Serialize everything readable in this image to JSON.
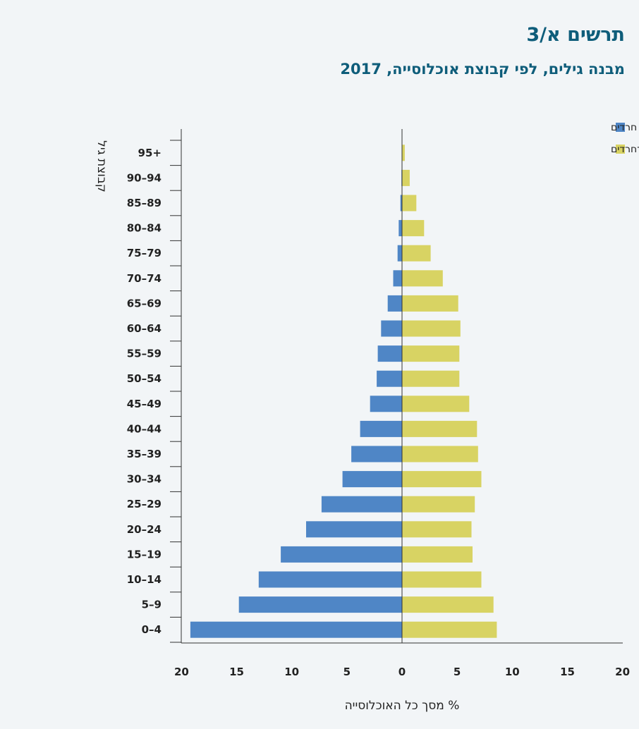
{
  "chart_data": {
    "type": "bar",
    "orientation": "horizontal-population-pyramid",
    "title": "תרשים א/3",
    "subtitle": "מבנה גילים, לפי קבוצת אוכלוסייה, 2017",
    "ylabel": "קבוצת גיל",
    "xlabel": "% מסך כל האוכלוסייה",
    "categories": [
      "0–4",
      "5–9",
      "10–14",
      "15–19",
      "20–24",
      "25–29",
      "30–34",
      "35–39",
      "40–44",
      "45–49",
      "50–54",
      "55–59",
      "60–64",
      "65–69",
      "70–74",
      "75–79",
      "80–84",
      "85–89",
      "90–94",
      "95+"
    ],
    "series": [
      {
        "name": "חרדים",
        "side": "left",
        "color": "#4f86c6",
        "values": [
          19.2,
          14.8,
          13.0,
          11.0,
          8.7,
          7.3,
          5.4,
          4.6,
          3.8,
          2.9,
          2.3,
          2.2,
          1.9,
          1.3,
          0.8,
          0.4,
          0.3,
          0.15,
          0.05,
          0.0
        ]
      },
      {
        "name": "יהודים ואחרים לא־חרדים",
        "side": "right",
        "color": "#d8d363",
        "values": [
          8.6,
          8.3,
          7.2,
          6.4,
          6.3,
          6.6,
          7.2,
          6.9,
          6.8,
          6.1,
          5.2,
          5.2,
          5.3,
          5.1,
          3.7,
          2.6,
          2.0,
          1.3,
          0.7,
          0.25
        ]
      }
    ],
    "xlim": [
      -20,
      20
    ],
    "xticks": [
      20,
      15,
      10,
      5,
      0,
      5,
      10,
      15,
      20
    ],
    "legend_position": "top-right"
  }
}
